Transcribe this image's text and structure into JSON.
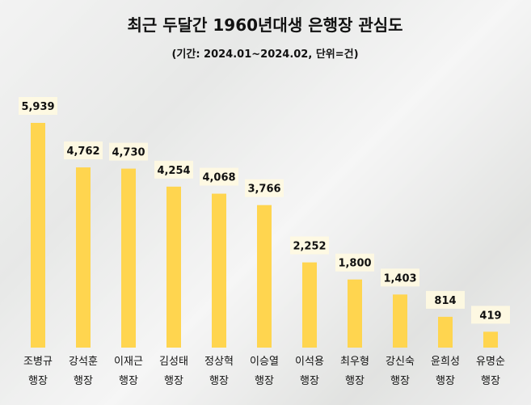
{
  "chart_data": {
    "type": "bar",
    "title": "최근 두달간 1960년대생 은행장 관심도",
    "subtitle": "(기간: 2024.01~2024.02, 단위=건)",
    "categories": [
      "조병규\n행장",
      "강석훈\n행장",
      "이재근\n행장",
      "김성태\n행장",
      "정상혁\n행장",
      "이승열\n행장",
      "이석용\n행장",
      "최우형\n행장",
      "강신숙\n행장",
      "윤희성\n행장",
      "유명순\n행장"
    ],
    "values": [
      5939,
      4762,
      4730,
      4254,
      4068,
      3766,
      2252,
      1800,
      1403,
      814,
      419
    ],
    "value_labels": [
      "5,939",
      "4,762",
      "4,730",
      "4,254",
      "4,068",
      "3,766",
      "2,252",
      "1,800",
      "1,403",
      "814",
      "419"
    ],
    "color": "#ffd54f"
  }
}
